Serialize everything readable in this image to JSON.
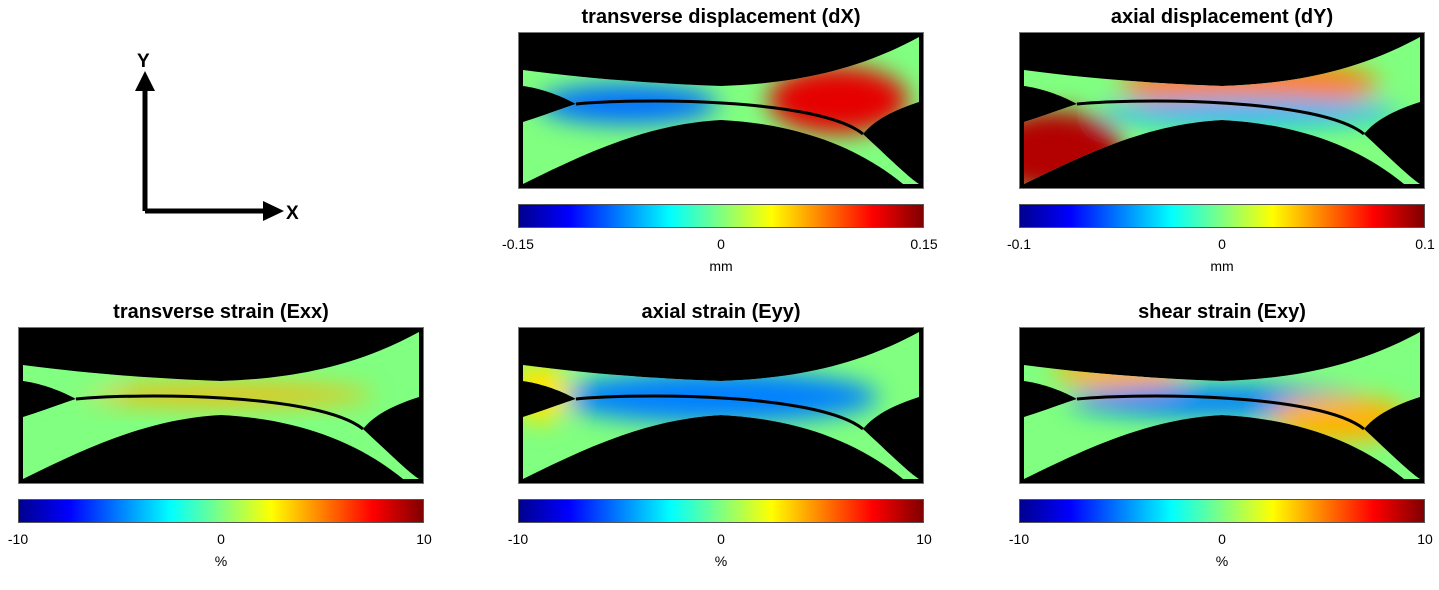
{
  "axes_icon": {
    "y_label": "Y",
    "x_label": "X"
  },
  "chart_data": [
    {
      "type": "heatmap",
      "title": "transverse displacement (dX)",
      "colorbar_label": "mm",
      "colormap": "jet",
      "clim": [
        -0.15,
        0.15
      ],
      "ticks": [
        "-0.15",
        "0",
        "0.15"
      ],
      "mask_color": "#000000",
      "features": [
        {
          "label": "negative extreme",
          "value": -0.08
        },
        {
          "label": "positive extreme",
          "value": 0.12
        }
      ]
    },
    {
      "type": "heatmap",
      "title": "axial displacement (dY)",
      "colorbar_label": "mm",
      "colormap": "jet",
      "clim": [
        -0.1,
        0.1
      ],
      "ticks": [
        "-0.1",
        "0",
        "0.1"
      ],
      "mask_color": "#000000",
      "features": [
        {
          "label": "lower-left extreme",
          "value": 0.09
        },
        {
          "label": "upper band",
          "value": 0.05
        },
        {
          "label": "lower band",
          "value": -0.04
        }
      ]
    },
    {
      "type": "heatmap",
      "title": "transverse strain (Exx)",
      "colorbar_label": "%",
      "colormap": "jet",
      "clim": [
        -10,
        10
      ],
      "ticks": [
        "-10",
        "0",
        "10"
      ],
      "mask_color": "#000000",
      "features": [
        {
          "label": "central band",
          "value": 4
        },
        {
          "label": "background",
          "value": 0
        }
      ]
    },
    {
      "type": "heatmap",
      "title": "axial strain (Eyy)",
      "colorbar_label": "%",
      "colormap": "jet",
      "clim": [
        -10,
        10
      ],
      "ticks": [
        "-10",
        "0",
        "10"
      ],
      "mask_color": "#000000",
      "features": [
        {
          "label": "central band",
          "value": -5
        },
        {
          "label": "left edge",
          "value": 3
        }
      ]
    },
    {
      "type": "heatmap",
      "title": "shear strain (Exy)",
      "colorbar_label": "%",
      "colormap": "jet",
      "clim": [
        -10,
        10
      ],
      "ticks": [
        "-10",
        "0",
        "10"
      ],
      "mask_color": "#000000",
      "features": [
        {
          "label": "upper-left region",
          "value": 4
        },
        {
          "label": "central band",
          "value": -5
        },
        {
          "label": "lower-right region",
          "value": 4
        }
      ]
    }
  ]
}
